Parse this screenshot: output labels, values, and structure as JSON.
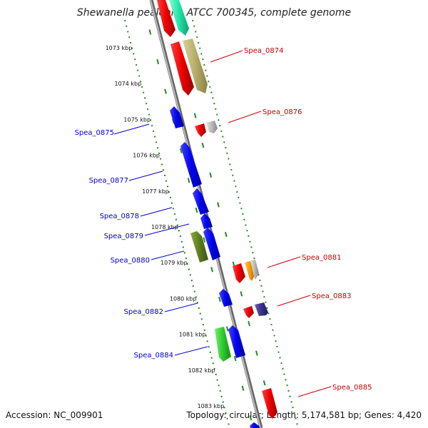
{
  "title": "Shewanella pealeana ATCC 700345, complete genome",
  "footer": {
    "accession": "Accession: NC_009901",
    "summary": "Topology: circular; Length: 5,174,581 bp; Genes: 4,420"
  },
  "ruler": {
    "ticks": [
      "1073 kbp",
      "1074 kbp",
      "1075 kbp",
      "1076 kbp",
      "1077 kbp",
      "1078 kbp",
      "1079 kbp",
      "1080 kbp",
      "1081 kbp",
      "1082 kbp",
      "1083 kbp"
    ]
  },
  "genes_left": [
    {
      "label": "Spea_0875",
      "color": "#0000ee"
    },
    {
      "label": "Spea_0877",
      "color": "#0000ee"
    },
    {
      "label": "Spea_0878",
      "color": "#0000ee"
    },
    {
      "label": "Spea_0879",
      "color": "#0000ee"
    },
    {
      "label": "Spea_0880",
      "color": "#0000ee"
    },
    {
      "label": "Spea_0882",
      "color": "#0000ee"
    },
    {
      "label": "Spea_0884",
      "color": "#0000ee"
    }
  ],
  "genes_right": [
    {
      "label": "Spea_0874",
      "color": "#ee0000"
    },
    {
      "label": "Spea_0876",
      "color": "#ee0000"
    },
    {
      "label": "Spea_0881",
      "color": "#ee0000"
    },
    {
      "label": "Spea_0883",
      "color": "#ee0000"
    },
    {
      "label": "Spea_0885",
      "color": "#ee0000"
    }
  ],
  "colors": {
    "axis": "#808080",
    "ruler": "#228822",
    "forward": "#ee0000",
    "reverse": "#0000ee",
    "khaki": "#b8ae6a",
    "olive": "#5e7d1e",
    "green": "#2ec82e",
    "cyan": "#22e4a8",
    "orange": "#ff9900",
    "navy": "#3a2f8a",
    "gray": "#b8b8b8"
  }
}
